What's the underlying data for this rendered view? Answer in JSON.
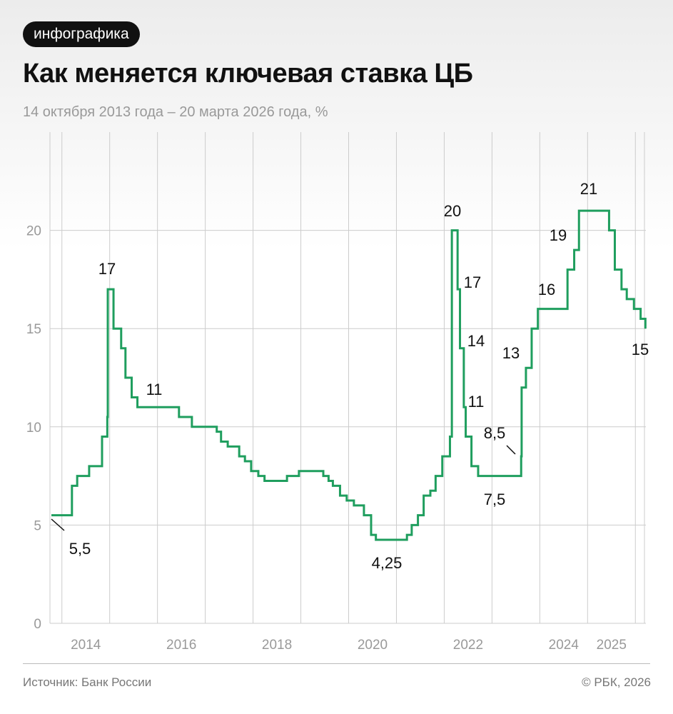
{
  "header": {
    "badge": "инфографика",
    "title": "Как меняется ключевая ставка ЦБ",
    "subtitle": "14 октября 2013 года – 20 марта 2026 года, %"
  },
  "footer": {
    "source": "Источник: Банк России",
    "copyright": "© РБК, 2026"
  },
  "chart_data": {
    "type": "step",
    "color": "#1f9e5e",
    "grid": true,
    "x": [
      2013.78,
      2014.21,
      2014.32,
      2014.57,
      2014.84,
      2014.95,
      2014.96,
      2015.08,
      2015.24,
      2015.33,
      2015.46,
      2015.58,
      2016.45,
      2016.72,
      2017.24,
      2017.33,
      2017.47,
      2017.71,
      2017.83,
      2017.96,
      2018.11,
      2018.24,
      2018.71,
      2018.96,
      2019.47,
      2019.58,
      2019.67,
      2019.82,
      2019.96,
      2020.11,
      2020.32,
      2020.47,
      2020.57,
      2021.22,
      2021.32,
      2021.45,
      2021.57,
      2021.71,
      2021.82,
      2021.96,
      2022.12,
      2022.16,
      2022.28,
      2022.33,
      2022.41,
      2022.45,
      2022.57,
      2022.71,
      2023.61,
      2023.62,
      2023.71,
      2023.83,
      2023.96,
      2024.58,
      2024.72,
      2024.82,
      2025.45,
      2025.57,
      2025.71,
      2025.82,
      2025.97,
      2026.11,
      2026.21
    ],
    "values": [
      5.5,
      7,
      7.5,
      8,
      9.5,
      10.5,
      17,
      15,
      14,
      12.5,
      11.5,
      11,
      10.5,
      10,
      9.75,
      9.25,
      9,
      8.5,
      8.25,
      7.75,
      7.5,
      7.25,
      7.5,
      7.75,
      7.5,
      7.25,
      7,
      6.5,
      6.25,
      6,
      5.5,
      4.5,
      4.25,
      4.5,
      5,
      5.5,
      6.5,
      6.75,
      7.5,
      8.5,
      9.5,
      20,
      17,
      14,
      11,
      9.5,
      8,
      7.5,
      8.5,
      12,
      13,
      15,
      16,
      18,
      19,
      21,
      20,
      18,
      17,
      16.5,
      16,
      15.5,
      15
    ],
    "value_labels": [
      "5,5",
      null,
      null,
      null,
      null,
      null,
      "17",
      null,
      null,
      null,
      null,
      "11",
      null,
      null,
      null,
      null,
      null,
      null,
      null,
      null,
      null,
      null,
      null,
      null,
      null,
      null,
      null,
      null,
      null,
      null,
      null,
      null,
      "4,25",
      null,
      null,
      null,
      null,
      null,
      null,
      null,
      null,
      "20",
      "17",
      "14",
      "11",
      null,
      null,
      "7,5",
      "8,5",
      null,
      "13",
      null,
      "16",
      null,
      "19",
      "21",
      null,
      null,
      null,
      null,
      null,
      null,
      "15"
    ],
    "xlim": [
      2013.75,
      2026.22
    ],
    "ylim": [
      0,
      25
    ],
    "xticks": [
      {
        "value": 2014.5,
        "label": "2014"
      },
      {
        "value": 2016.5,
        "label": "2016"
      },
      {
        "value": 2018.5,
        "label": "2018"
      },
      {
        "value": 2020.5,
        "label": "2020"
      },
      {
        "value": 2022.5,
        "label": "2022"
      },
      {
        "value": 2024.5,
        "label": "2024"
      },
      {
        "value": 2025.5,
        "label": "2025"
      }
    ],
    "xgrid": [
      2014,
      2015,
      2016,
      2017,
      2018,
      2019,
      2020,
      2021,
      2022,
      2023,
      2024,
      2025,
      2026
    ],
    "yticks": [
      0,
      5,
      10,
      15,
      20
    ]
  }
}
